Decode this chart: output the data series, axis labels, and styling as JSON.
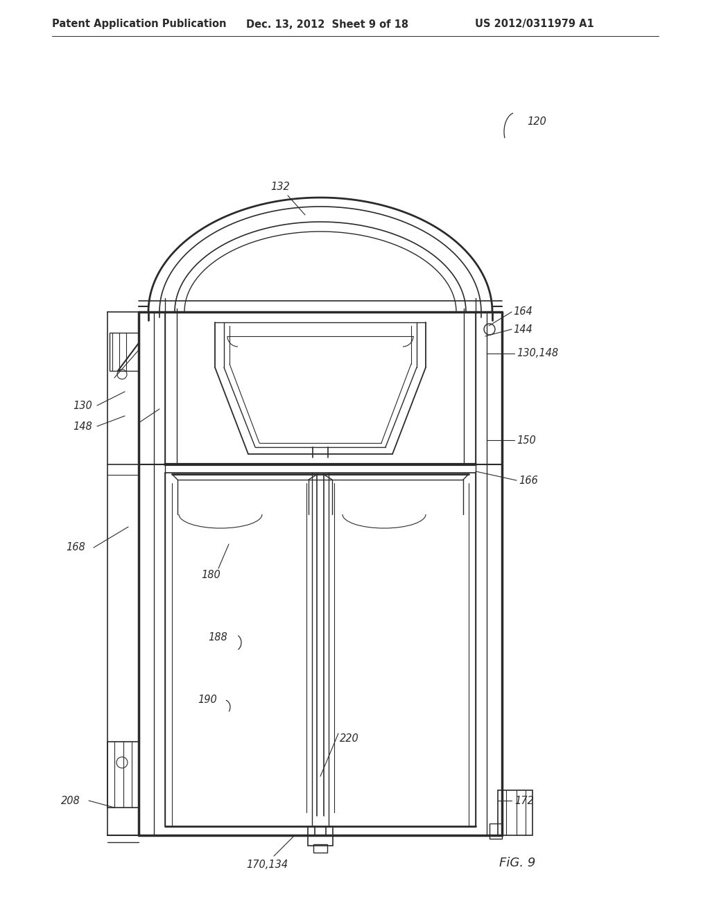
{
  "background_color": "#ffffff",
  "line_color": "#2a2a2a",
  "header_text_left": "Patent Application Publication",
  "header_text_center": "Dec. 13, 2012  Sheet 9 of 18",
  "header_text_right": "US 2012/0311979 A1",
  "header_fontsize": 10.5,
  "figure_label": "FiG. 9",
  "figure_label_fontsize": 13,
  "label_fontsize": 10.5
}
